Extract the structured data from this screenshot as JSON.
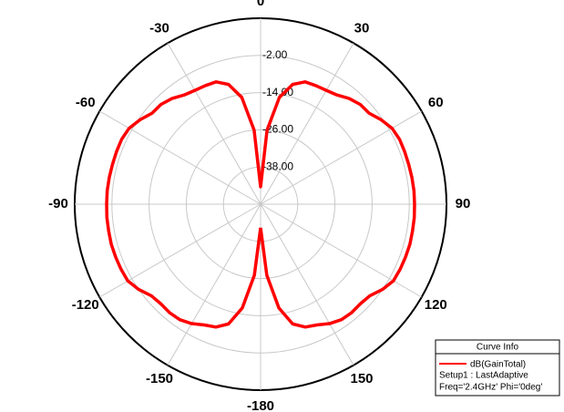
{
  "chart_data": {
    "type": "polar",
    "x": [
      -180,
      -175,
      -170,
      -165,
      -160,
      -155,
      -150,
      -145,
      -140,
      -135,
      -130,
      -125,
      -120,
      -115,
      -110,
      -105,
      -100,
      -95,
      -90,
      -85,
      -80,
      -75,
      -70,
      -65,
      -60,
      -55,
      -50,
      -45,
      -40,
      -35,
      -30,
      -25,
      -20,
      -15,
      -10,
      -5,
      0,
      5,
      10,
      15,
      20,
      25,
      30,
      35,
      40,
      45,
      50,
      55,
      60,
      65,
      70,
      75,
      80,
      85,
      90,
      95,
      100,
      105,
      110,
      115,
      120,
      125,
      130,
      135,
      140,
      145,
      150,
      155,
      160,
      165,
      170,
      175,
      180
    ],
    "series": [
      {
        "name": "dB(GainTotal)",
        "color": "#ff0000",
        "values": [
          -42.4,
          -27,
          -16,
          -10,
          -7.8,
          -7,
          -5.5,
          -4.5,
          -4.3,
          -4.5,
          -4,
          -2,
          -0.5,
          -0.3,
          -0.2,
          -0.1,
          -0.2,
          -0.2,
          -0.3,
          -0.3,
          -0.4,
          -0.5,
          -0.5,
          -0.5,
          -1,
          -2.5,
          -4.3,
          -4.5,
          -5.5,
          -7,
          -7.6,
          -7.8,
          -8,
          -10,
          -15,
          -26,
          -44.4,
          -26,
          -15,
          -10,
          -8,
          -7.8,
          -7.6,
          -7,
          -5.5,
          -4.5,
          -4.3,
          -2.5,
          -1,
          -0.5,
          -0.5,
          -0.5,
          -0.4,
          -0.3,
          -0.3,
          -0.2,
          -0.2,
          -0.1,
          -0.2,
          -0.3,
          -0.5,
          -2,
          -4,
          -4.5,
          -4.3,
          -4.5,
          -5.5,
          -7,
          -7.8,
          -10,
          -16,
          -27,
          -42.4
        ]
      }
    ],
    "rlim": [
      -50,
      10
    ],
    "rticks": [
      {
        "value": -2,
        "label": "-2.00"
      },
      {
        "value": -14,
        "label": "-14.00"
      },
      {
        "value": -26,
        "label": "-26.00"
      },
      {
        "value": -38,
        "label": "-38.00"
      }
    ],
    "angle_ticks": [
      0,
      30,
      60,
      90,
      120,
      150,
      -180,
      -150,
      -120,
      -90,
      -60,
      -30
    ],
    "legend_title": "Curve Info",
    "legend_lines": [
      "Setup1 : LastAdaptive",
      "Freq='2.4GHz' Phi='0deg'"
    ]
  }
}
